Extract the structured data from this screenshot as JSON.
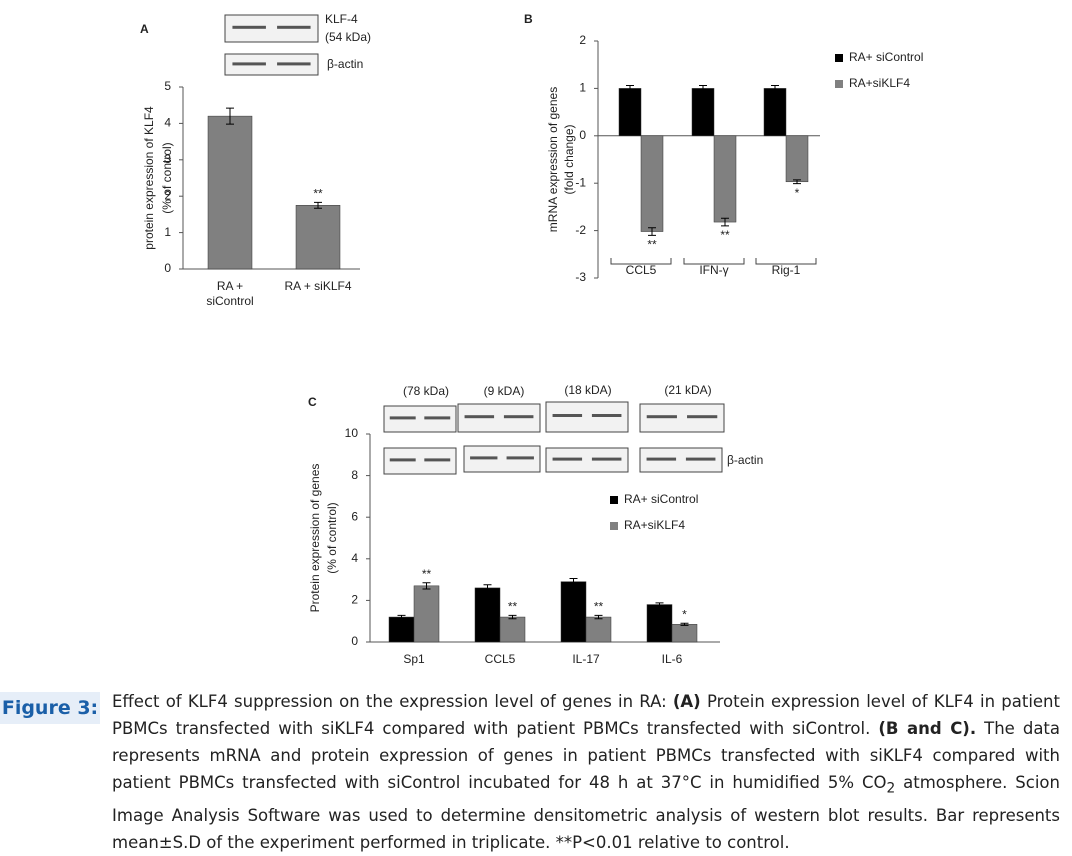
{
  "chart_data": [
    {
      "type": "bar",
      "panel": "A",
      "blot_labels": [
        "KLF-4",
        "(54 kDa)",
        "β-actin"
      ],
      "ylabel": [
        "protein expression of KLF4",
        "(% of control)"
      ],
      "categories": [
        "RA +\nsiControl",
        "RA + siKLF4"
      ],
      "values": [
        4.2,
        1.75
      ],
      "errors": [
        0.22,
        0.08
      ],
      "annotations": [
        null,
        "**"
      ],
      "color": "#808080",
      "ylim": [
        0,
        5
      ],
      "yticks": [
        0,
        1,
        2,
        3,
        4,
        5
      ]
    },
    {
      "type": "bar",
      "panel": "B",
      "ylabel": [
        "mRNA expression of genes",
        "(fold change)"
      ],
      "categories": [
        "CCL5",
        "IFN-γ",
        "Rig-1"
      ],
      "series": [
        {
          "name": "RA+ siControl",
          "color": "#000000",
          "values": [
            1,
            1,
            1
          ],
          "errors": [
            0.06,
            0.06,
            0.06
          ],
          "annotations": [
            null,
            null,
            null
          ]
        },
        {
          "name": "RA+siKLF4",
          "color": "#808080",
          "values": [
            -2.02,
            -1.82,
            -0.97
          ],
          "errors": [
            0.08,
            0.08,
            0.04
          ],
          "annotations": [
            "**",
            "**",
            "*"
          ]
        }
      ],
      "ylim": [
        -3,
        2
      ],
      "yticks": [
        -3,
        -2,
        -1,
        0,
        1,
        2
      ]
    },
    {
      "type": "bar",
      "panel": "C",
      "blot_labels": [
        "(78 kDa)",
        "(9 kDA)",
        "(18 kDA)",
        "(21 kDA)",
        "β-actin"
      ],
      "ylabel": [
        "Protein expression of genes",
        "(% of control)"
      ],
      "categories": [
        "Sp1",
        "CCL5",
        "IL-17",
        "IL-6"
      ],
      "series": [
        {
          "name": "RA+ siControl",
          "color": "#000000",
          "values": [
            1.2,
            2.6,
            2.9,
            1.8
          ],
          "errors": [
            0.08,
            0.15,
            0.15,
            0.08
          ],
          "annotations": [
            null,
            null,
            null,
            null
          ]
        },
        {
          "name": "RA+siKLF4",
          "color": "#808080",
          "values": [
            2.7,
            1.2,
            1.2,
            0.85
          ],
          "errors": [
            0.15,
            0.08,
            0.08,
            0.05
          ],
          "annotations": [
            "**",
            "**",
            "**",
            "*"
          ]
        }
      ],
      "ylim": [
        0,
        10
      ],
      "yticks": [
        0,
        2,
        4,
        6,
        8,
        10
      ]
    }
  ],
  "caption": {
    "label": "Figure 3:",
    "parts": [
      {
        "text": "Effect of KLF4 suppression on the expression level of genes in RA: ",
        "bold": false
      },
      {
        "text": "(A)",
        "bold": true
      },
      {
        "text": " Protein expression level of KLF4 in patient PBMCs transfected with siKLF4 compared with patient PBMCs transfected with siControl. ",
        "bold": false
      },
      {
        "text": "(B and C).",
        "bold": true
      },
      {
        "text": " The data represents mRNA and protein expression of genes in patient PBMCs transfected with siKLF4 compared with patient PBMCs transfected with siControl incubated for 48 h at 37°C in humidified 5% CO",
        "bold": false
      },
      {
        "text": "2",
        "bold": false,
        "sub": true
      },
      {
        "text": " atmosphere. Scion Image Analysis Software was used to determine densitometric analysis of western blot results. Bar represents mean±S.D of the experiment performed in triplicate. **P<0.01 relative to control.",
        "bold": false
      }
    ]
  }
}
